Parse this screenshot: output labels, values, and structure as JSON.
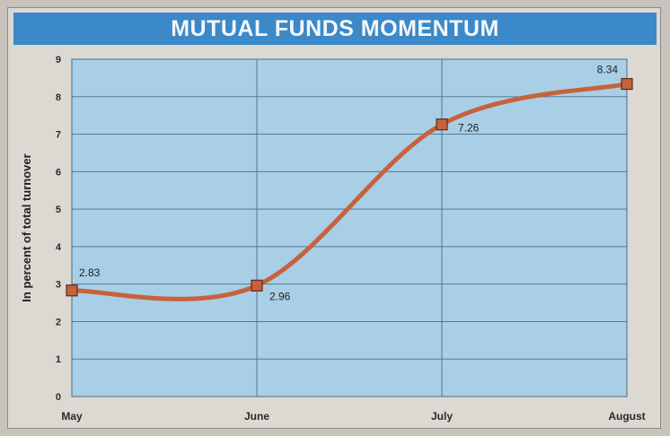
{
  "chart_data": {
    "type": "line",
    "title": "MUTUAL FUNDS MOMENTUM",
    "ylabel": "In percent of total turnover",
    "xlabel": "",
    "categories": [
      "May",
      "June",
      "July",
      "August"
    ],
    "values": [
      2.83,
      2.96,
      7.26,
      8.34
    ],
    "data_labels": [
      "2.83",
      "2.96",
      "7.26",
      "8.34"
    ],
    "ylim": [
      0,
      9
    ],
    "yticks": [
      0,
      1,
      2,
      3,
      4,
      5,
      6,
      7,
      8,
      9
    ],
    "grid": true,
    "legend": "none",
    "colors": {
      "line": "#c8623c",
      "marker_fill": "#c8623c",
      "marker_stroke": "#5a2a1a",
      "plot_bg": "#a9cfe6",
      "title_bg": "#3b89c9",
      "grid": "#4a6d86"
    }
  }
}
